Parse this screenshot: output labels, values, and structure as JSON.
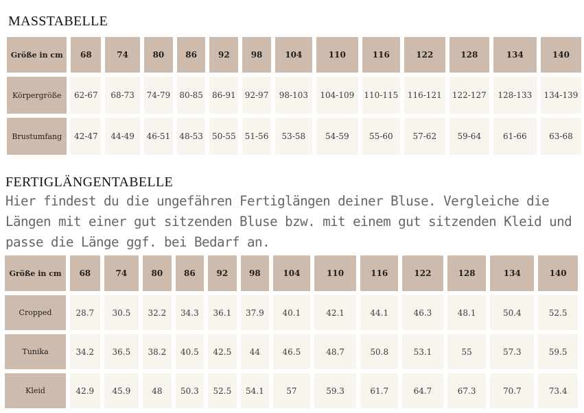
{
  "mass": {
    "title": "MASSTABELLE",
    "header_label": "Größe in cm",
    "sizes": [
      "68",
      "74",
      "80",
      "86",
      "92",
      "98",
      "104",
      "110",
      "116",
      "122",
      "128",
      "134",
      "140"
    ],
    "rows": [
      {
        "label": "Körpergröße",
        "values": [
          "62-67",
          "68-73",
          "74-79",
          "80-85",
          "86-91",
          "92-97",
          "98-103",
          "104-109",
          "110-115",
          "116-121",
          "122-127",
          "128-133",
          "134-139"
        ]
      },
      {
        "label": "Brustumfang",
        "values": [
          "42-47",
          "44-49",
          "46-51",
          "48-53",
          "50-55",
          "51-56",
          "53-58",
          "54-59",
          "55-60",
          "57-62",
          "59-64",
          "61-66",
          "63-68"
        ]
      }
    ]
  },
  "lengths": {
    "title": "FERTIGLÄNGENTABELLE",
    "intro": "Hier findest du die ungefähren Fertiglängen deiner Bluse. Vergleiche die Längen mit einer gut sitzenden Bluse bzw. mit einem gut sitzenden Kleid und passe die Länge ggf. bei Bedarf an.",
    "header_label": "Größe in cm",
    "sizes": [
      "68",
      "74",
      "80",
      "86",
      "92",
      "98",
      "104",
      "110",
      "116",
      "122",
      "128",
      "134",
      "140"
    ],
    "rows": [
      {
        "label": "Cropped",
        "values": [
          "28.7",
          "30.5",
          "32.2",
          "34.3",
          "36.1",
          "37.9",
          "40.1",
          "42.1",
          "44.1",
          "46.3",
          "48.1",
          "50.4",
          "52.5"
        ]
      },
      {
        "label": "Tunika",
        "values": [
          "34.2",
          "36.5",
          "38.2",
          "40.5",
          "42.5",
          "44",
          "46.5",
          "48.7",
          "50.8",
          "53.1",
          "55",
          "57.3",
          "59.5"
        ]
      },
      {
        "label": "Kleid",
        "values": [
          "42.9",
          "45.9",
          "48",
          "50.3",
          "52.5",
          "54.1",
          "57",
          "59.3",
          "61.7",
          "64.7",
          "67.3",
          "70.7",
          "73.4"
        ]
      }
    ]
  }
}
